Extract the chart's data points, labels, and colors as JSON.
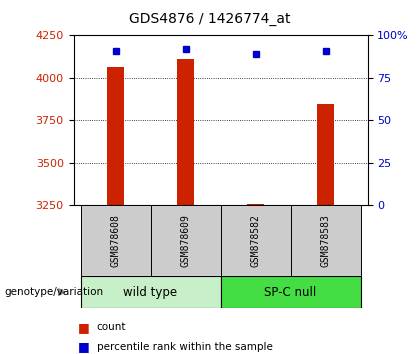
{
  "title": "GDS4876 / 1426774_at",
  "samples": [
    "GSM878608",
    "GSM878609",
    "GSM878582",
    "GSM878583"
  ],
  "groups": [
    {
      "name": "wild type",
      "color": "#c8f0c8",
      "samples": [
        0,
        1
      ]
    },
    {
      "name": "SP-C null",
      "color": "#44dd44",
      "samples": [
        2,
        3
      ]
    }
  ],
  "bar_values": [
    4065,
    4110,
    3258,
    3845
  ],
  "percentile_values": [
    91,
    92,
    89,
    91
  ],
  "ylim_left": [
    3250,
    4250
  ],
  "ylim_right": [
    0,
    100
  ],
  "yticks_left": [
    3250,
    3500,
    3750,
    4000,
    4250
  ],
  "yticks_right": [
    0,
    25,
    50,
    75,
    100
  ],
  "bar_color": "#cc2200",
  "dot_color": "#0000cc",
  "plot_bg_color": "#ffffff",
  "left_label_color": "#cc2200",
  "right_label_color": "#0000cc",
  "legend_count_color": "#cc2200",
  "legend_pct_color": "#0000cc",
  "bar_width": 0.25,
  "sample_box_color": "#cccccc"
}
